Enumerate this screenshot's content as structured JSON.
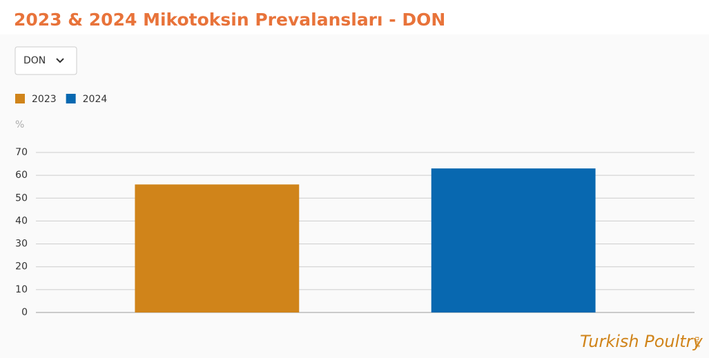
{
  "chart_data": {
    "type": "bar",
    "title": "2023 & 2024 Mikotoksin Prevalansları - DON",
    "filter": "DON",
    "y_label": "%",
    "categories": [
      null
    ],
    "series": [
      {
        "name": "2023",
        "color": "#d0841a",
        "values": [
          56
        ]
      },
      {
        "name": "2024",
        "color": "#0868b0",
        "values": [
          63
        ]
      }
    ],
    "ylim": [
      0,
      70
    ],
    "yticks": [
      0,
      10,
      20,
      30,
      40,
      50,
      60,
      70
    ],
    "grid": true,
    "watermark": {
      "brand": "Turkish Poultry",
      "suffix": "net"
    }
  }
}
